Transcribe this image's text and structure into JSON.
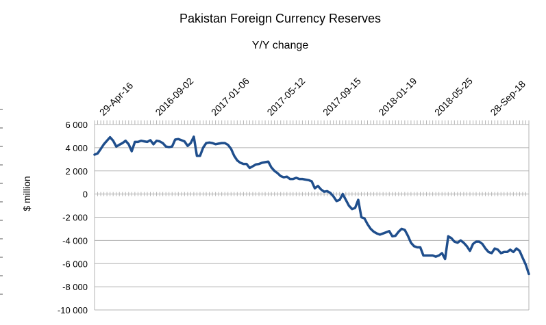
{
  "chart_data": {
    "type": "line",
    "title": "Pakistan Foreign Currency Reserves",
    "subtitle": "Y/Y change",
    "ylabel": "$ million",
    "xlabel": "",
    "ylim": [
      -10000,
      6000
    ],
    "yticks": [
      6000,
      4000,
      2000,
      0,
      -2000,
      -4000,
      -6000,
      -8000,
      -10000
    ],
    "ytick_labels": [
      "6 000",
      "4 000",
      "2 000",
      "0",
      "-2 000",
      "-4 000",
      "-6 000",
      "-8 000",
      "-10 000"
    ],
    "xtick_labels": [
      "29-Apr-16",
      "2016-09-02",
      "2017-01-06",
      "2017-05-12",
      "2017-09-15",
      "2018-01-19",
      "2018-05-25",
      "28-Sep-18"
    ],
    "xtick_positions": [
      2,
      20,
      38,
      56,
      74,
      92,
      110,
      128
    ],
    "x_count": 141,
    "grid": true,
    "legend": "none",
    "line_color": "#1f4e8c",
    "series": [
      {
        "name": "Y/Y change",
        "values": [
          3400,
          3500,
          3900,
          4300,
          4600,
          4900,
          4600,
          4100,
          4250,
          4400,
          4600,
          4300,
          3700,
          4500,
          4500,
          4600,
          4550,
          4500,
          4650,
          4300,
          4600,
          4550,
          4400,
          4100,
          4050,
          4100,
          4700,
          4750,
          4650,
          4550,
          4150,
          4400,
          4950,
          3300,
          3300,
          4000,
          4400,
          4450,
          4400,
          4300,
          4350,
          4400,
          4400,
          4250,
          3900,
          3300,
          2900,
          2700,
          2600,
          2600,
          2250,
          2400,
          2550,
          2600,
          2700,
          2750,
          2800,
          2300,
          2000,
          1800,
          1550,
          1450,
          1500,
          1300,
          1300,
          1400,
          1300,
          1300,
          1250,
          1200,
          1100,
          500,
          700,
          400,
          200,
          250,
          100,
          -200,
          -600,
          -500,
          0,
          -500,
          -1000,
          -1300,
          -1200,
          -500,
          -2000,
          -2100,
          -2600,
          -3000,
          -3250,
          -3400,
          -3500,
          -3400,
          -3300,
          -3200,
          -3650,
          -3600,
          -3250,
          -3000,
          -3100,
          -3600,
          -4200,
          -4500,
          -4600,
          -4600,
          -5300,
          -5300,
          -5300,
          -5300,
          -5400,
          -5300,
          -5100,
          -5600,
          -3650,
          -3800,
          -4100,
          -4200,
          -4000,
          -4200,
          -4500,
          -4900,
          -4300,
          -4100,
          -4100,
          -4300,
          -4700,
          -5000,
          -5100,
          -4700,
          -4800,
          -5100,
          -5000,
          -5000,
          -4800,
          -5000,
          -4700,
          -4900,
          -5500,
          -6100,
          -6900
        ]
      }
    ]
  }
}
